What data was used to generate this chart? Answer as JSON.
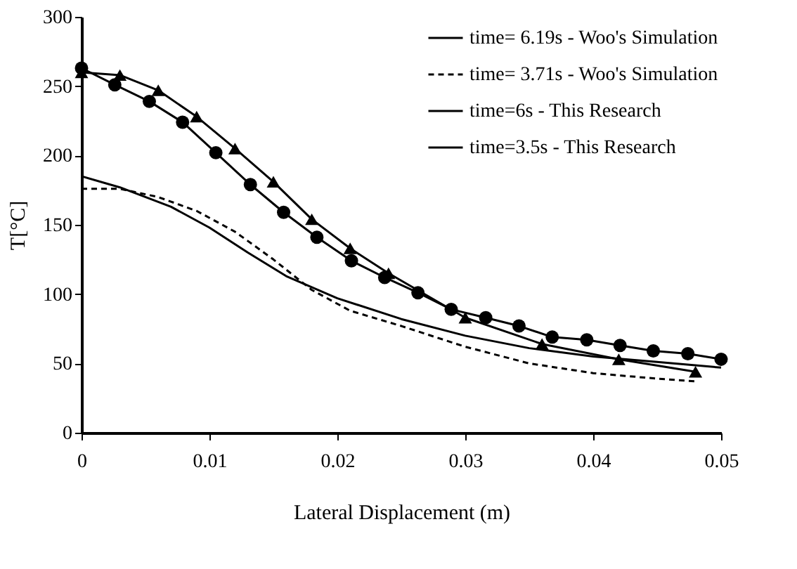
{
  "chart_data": {
    "type": "line",
    "xlabel": "Lateral Displacement (m)",
    "ylabel": "T[°C]",
    "xlim": [
      0,
      0.05
    ],
    "xticks": [
      0,
      0.01,
      0.02,
      0.03,
      0.04,
      0.05
    ],
    "ylim": [
      0,
      300
    ],
    "yticks": [
      0,
      50,
      100,
      150,
      200,
      250,
      300
    ],
    "grid": false,
    "legend": "top right",
    "series": [
      {
        "name": "time= 6.19s - Woo's Simulation",
        "color": "#000000",
        "marker": "triangle",
        "line_style": "solid",
        "x": [
          0,
          0.003,
          0.006,
          0.009,
          0.012,
          0.015,
          0.018,
          0.021,
          0.024,
          0.03,
          0.036,
          0.042,
          0.048
        ],
        "values": [
          260,
          258,
          247,
          228,
          205,
          181,
          154,
          133,
          115,
          83,
          64,
          53,
          44
        ]
      },
      {
        "name": "time= 3.71s - Woo's Simulation",
        "color": "#000000",
        "marker": "none",
        "line_style": "dashed",
        "x": [
          0,
          0.003,
          0.006,
          0.009,
          0.012,
          0.015,
          0.018,
          0.021,
          0.025,
          0.03,
          0.035,
          0.04,
          0.045,
          0.048
        ],
        "values": [
          176,
          176,
          170,
          160,
          145,
          125,
          103,
          88,
          77,
          62,
          50,
          43,
          39,
          37
        ]
      },
      {
        "name": "time=6s - This Research",
        "color": "#000000",
        "marker": "circle",
        "line_style": "solid",
        "x": [
          0,
          0.0026,
          0.0053,
          0.0079,
          0.0105,
          0.0132,
          0.0158,
          0.0184,
          0.0211,
          0.0237,
          0.0263,
          0.0289,
          0.0316,
          0.0342,
          0.0368,
          0.0395,
          0.0421,
          0.0447,
          0.0474,
          0.05
        ],
        "values": [
          263,
          251,
          239,
          224,
          202,
          179,
          159,
          141,
          124,
          112,
          101,
          89,
          83,
          77,
          69,
          67,
          63,
          59,
          57,
          53
        ]
      },
      {
        "name": "time=3.5s - This Research",
        "color": "#000000",
        "marker": "none",
        "line_style": "solid",
        "x": [
          0,
          0.003,
          0.007,
          0.01,
          0.013,
          0.016,
          0.02,
          0.025,
          0.03,
          0.035,
          0.04,
          0.045,
          0.05
        ],
        "values": [
          185,
          177,
          163,
          148,
          130,
          113,
          97,
          82,
          70,
          61,
          55,
          51,
          47
        ]
      }
    ]
  }
}
